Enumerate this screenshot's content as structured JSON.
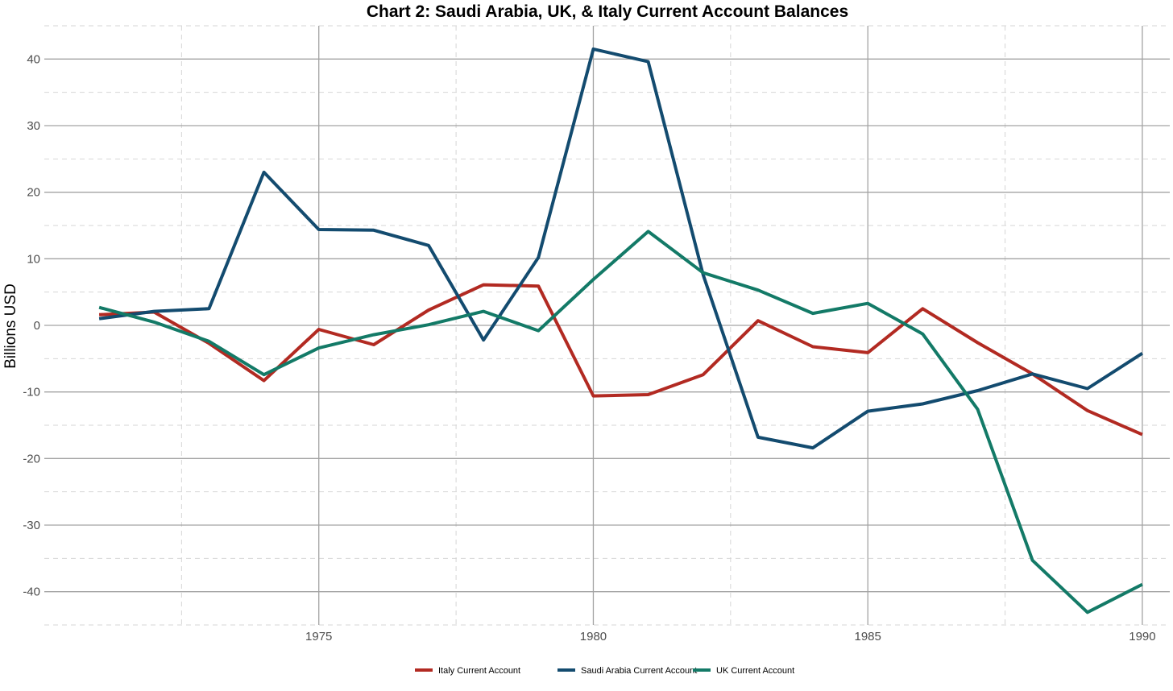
{
  "chart_data": {
    "type": "line",
    "title": "Chart 2: Saudi Arabia, UK, & Italy Current Account Balances",
    "xlabel": "",
    "ylabel": "Billions USD",
    "xlim": [
      1970,
      1990.5
    ],
    "ylim": [
      -45,
      45
    ],
    "x_ticks": [
      1975,
      1980,
      1985,
      1990
    ],
    "x_minor_ticks": [
      1972.5,
      1977.5,
      1982.5,
      1987.5
    ],
    "y_ticks": [
      -40,
      -30,
      -20,
      -10,
      0,
      10,
      20,
      30,
      40
    ],
    "y_minor_ticks": [
      -45,
      -35,
      -25,
      -15,
      -5,
      5,
      15,
      25,
      35,
      45
    ],
    "grid": true,
    "legend_position": "bottom",
    "x": [
      1971,
      1972,
      1973,
      1974,
      1975,
      1976,
      1977,
      1978,
      1979,
      1980,
      1981,
      1982,
      1983,
      1984,
      1985,
      1986,
      1987,
      1988,
      1989,
      1990
    ],
    "series": [
      {
        "name": "Italy Current Account",
        "color": "#b22a22",
        "values": [
          1.6,
          2.0,
          -2.7,
          -8.3,
          -0.6,
          -2.9,
          2.3,
          6.1,
          5.9,
          -10.6,
          -10.4,
          -7.4,
          0.7,
          -3.2,
          -4.1,
          2.5,
          -2.6,
          -7.3,
          -12.8,
          -16.4
        ]
      },
      {
        "name": "Saudi Arabia Current Account",
        "color": "#134b6f",
        "values": [
          1.0,
          2.1,
          2.5,
          23.0,
          14.4,
          14.3,
          12.0,
          -2.2,
          10.2,
          41.5,
          39.6,
          7.6,
          -16.8,
          -18.4,
          -12.9,
          -11.8,
          -9.8,
          -7.3,
          -9.5,
          -4.2
        ]
      },
      {
        "name": "UK Current Account",
        "color": "#137a67",
        "values": [
          2.7,
          0.5,
          -2.4,
          -7.4,
          -3.4,
          -1.4,
          0.1,
          2.1,
          -0.8,
          6.9,
          14.1,
          7.9,
          5.3,
          1.8,
          3.3,
          -1.3,
          -12.6,
          -35.3,
          -43.1,
          -38.9
        ]
      }
    ]
  }
}
